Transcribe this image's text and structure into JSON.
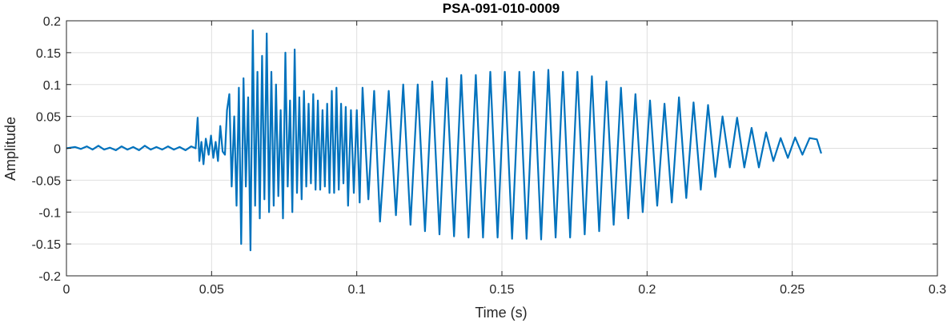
{
  "chart_data": {
    "type": "line",
    "title": "PSA-091-010-0009",
    "xlabel": "Time (s)",
    "ylabel": "Amplitude",
    "xlim": [
      0,
      0.3
    ],
    "ylim": [
      -0.2,
      0.2
    ],
    "grid": true,
    "legend": "none",
    "x_ticks": [
      0,
      0.05,
      0.1,
      0.15,
      0.2,
      0.25,
      0.3
    ],
    "x_tick_labels": [
      "0",
      "0.05",
      "0.1",
      "0.15",
      "0.2",
      "0.25",
      "0.3"
    ],
    "y_ticks": [
      0.2,
      0.15,
      0.1,
      0.05,
      0,
      -0.05,
      -0.1,
      -0.15,
      -0.2
    ],
    "y_tick_labels": [
      "0.2",
      "0.15",
      "0.1",
      "0.05",
      "0",
      "-0.05",
      "-0.1",
      "-0.15",
      "-0.2"
    ],
    "colors": {
      "series": "#0072BD",
      "grid": "#DFDFDF",
      "axes": "#262626"
    },
    "series": [
      {
        "points": [
          [
            0,
            0.0
          ],
          [
            0.003,
            0.002
          ],
          [
            0.005,
            -0.001
          ],
          [
            0.007,
            0.003
          ],
          [
            0.009,
            -0.002
          ],
          [
            0.011,
            0.004
          ],
          [
            0.013,
            -0.002
          ],
          [
            0.015,
            0.001
          ],
          [
            0.017,
            -0.003
          ],
          [
            0.019,
            0.003
          ],
          [
            0.021,
            -0.002
          ],
          [
            0.023,
            0.002
          ],
          [
            0.025,
            -0.003
          ],
          [
            0.027,
            0.004
          ],
          [
            0.029,
            -0.002
          ],
          [
            0.031,
            0.002
          ],
          [
            0.033,
            -0.002
          ],
          [
            0.035,
            0.003
          ],
          [
            0.037,
            -0.002
          ],
          [
            0.039,
            0.002
          ],
          [
            0.041,
            -0.003
          ],
          [
            0.043,
            0.003
          ],
          [
            0.0445,
            0.0
          ],
          [
            0.0452,
            0.048
          ],
          [
            0.0458,
            -0.02
          ],
          [
            0.0465,
            0.01
          ],
          [
            0.0472,
            -0.025
          ],
          [
            0.048,
            0.015
          ],
          [
            0.049,
            -0.01
          ],
          [
            0.0498,
            0.02
          ],
          [
            0.0506,
            -0.015
          ],
          [
            0.0514,
            0.01
          ],
          [
            0.0522,
            -0.02
          ],
          [
            0.053,
            0.035
          ],
          [
            0.0538,
            -0.005
          ],
          [
            0.0546,
            -0.01
          ],
          [
            0.0553,
            0.06
          ],
          [
            0.0561,
            0.085
          ],
          [
            0.0569,
            -0.06
          ],
          [
            0.0578,
            0.05
          ],
          [
            0.0586,
            -0.09
          ],
          [
            0.0594,
            0.095
          ],
          [
            0.0602,
            -0.15
          ],
          [
            0.061,
            0.11
          ],
          [
            0.0618,
            -0.06
          ],
          [
            0.0626,
            0.08
          ],
          [
            0.0634,
            -0.16
          ],
          [
            0.0642,
            0.185
          ],
          [
            0.065,
            -0.09
          ],
          [
            0.0658,
            0.12
          ],
          [
            0.0666,
            -0.11
          ],
          [
            0.0674,
            0.145
          ],
          [
            0.0682,
            -0.08
          ],
          [
            0.069,
            0.18
          ],
          [
            0.0698,
            -0.1
          ],
          [
            0.0706,
            0.12
          ],
          [
            0.0714,
            -0.09
          ],
          [
            0.0722,
            0.1
          ],
          [
            0.073,
            -0.075
          ],
          [
            0.0738,
            0.06
          ],
          [
            0.0746,
            -0.11
          ],
          [
            0.0754,
            0.15
          ],
          [
            0.0762,
            -0.06
          ],
          [
            0.077,
            0.075
          ],
          [
            0.0778,
            -0.1
          ],
          [
            0.0786,
            0.155
          ],
          [
            0.0794,
            -0.07
          ],
          [
            0.0802,
            0.08
          ],
          [
            0.081,
            -0.08
          ],
          [
            0.0818,
            0.09
          ],
          [
            0.0826,
            -0.06
          ],
          [
            0.0834,
            0.07
          ],
          [
            0.0842,
            -0.055
          ],
          [
            0.085,
            0.085
          ],
          [
            0.0858,
            -0.065
          ],
          [
            0.0866,
            0.075
          ],
          [
            0.0874,
            -0.065
          ],
          [
            0.0882,
            0.06
          ],
          [
            0.089,
            -0.06
          ],
          [
            0.0898,
            0.07
          ],
          [
            0.0906,
            -0.07
          ],
          [
            0.0914,
            0.09
          ],
          [
            0.0922,
            -0.07
          ],
          [
            0.093,
            0.095
          ],
          [
            0.0938,
            -0.065
          ],
          [
            0.0946,
            0.07
          ],
          [
            0.0954,
            -0.055
          ],
          [
            0.0962,
            0.065
          ],
          [
            0.097,
            -0.09
          ],
          [
            0.098,
            0.06
          ],
          [
            0.099,
            -0.07
          ],
          [
            0.1,
            0.06
          ],
          [
            0.101,
            -0.085
          ],
          [
            0.102,
            0.095
          ],
          [
            0.104,
            -0.08
          ],
          [
            0.106,
            0.09
          ],
          [
            0.108,
            -0.115
          ],
          [
            0.111,
            0.09
          ],
          [
            0.1135,
            -0.105
          ],
          [
            0.116,
            0.1
          ],
          [
            0.1185,
            -0.12
          ],
          [
            0.121,
            0.1
          ],
          [
            0.1235,
            -0.13
          ],
          [
            0.126,
            0.105
          ],
          [
            0.1285,
            -0.135
          ],
          [
            0.131,
            0.11
          ],
          [
            0.1335,
            -0.138
          ],
          [
            0.136,
            0.115
          ],
          [
            0.1385,
            -0.14
          ],
          [
            0.141,
            0.115
          ],
          [
            0.1435,
            -0.14
          ],
          [
            0.146,
            0.12
          ],
          [
            0.1485,
            -0.14
          ],
          [
            0.151,
            0.12
          ],
          [
            0.1535,
            -0.142
          ],
          [
            0.156,
            0.12
          ],
          [
            0.1585,
            -0.142
          ],
          [
            0.161,
            0.12
          ],
          [
            0.1635,
            -0.143
          ],
          [
            0.166,
            0.123
          ],
          [
            0.1685,
            -0.14
          ],
          [
            0.171,
            0.12
          ],
          [
            0.1735,
            -0.14
          ],
          [
            0.176,
            0.12
          ],
          [
            0.1785,
            -0.135
          ],
          [
            0.181,
            0.113
          ],
          [
            0.1835,
            -0.13
          ],
          [
            0.186,
            0.105
          ],
          [
            0.1885,
            -0.12
          ],
          [
            0.191,
            0.095
          ],
          [
            0.1935,
            -0.11
          ],
          [
            0.196,
            0.085
          ],
          [
            0.1985,
            -0.1
          ],
          [
            0.201,
            0.075
          ],
          [
            0.2035,
            -0.09
          ],
          [
            0.206,
            0.07
          ],
          [
            0.2085,
            -0.085
          ],
          [
            0.211,
            0.08
          ],
          [
            0.2135,
            -0.078
          ],
          [
            0.216,
            0.072
          ],
          [
            0.2185,
            -0.065
          ],
          [
            0.221,
            0.068
          ],
          [
            0.2235,
            -0.045
          ],
          [
            0.226,
            0.05
          ],
          [
            0.2285,
            -0.03
          ],
          [
            0.231,
            0.048
          ],
          [
            0.2335,
            -0.03
          ],
          [
            0.236,
            0.032
          ],
          [
            0.2385,
            -0.03
          ],
          [
            0.241,
            0.025
          ],
          [
            0.2435,
            -0.02
          ],
          [
            0.246,
            0.016
          ],
          [
            0.2485,
            -0.015
          ],
          [
            0.251,
            0.017
          ],
          [
            0.2535,
            -0.01
          ],
          [
            0.256,
            0.016
          ],
          [
            0.2585,
            0.014
          ],
          [
            0.26,
            -0.008
          ]
        ]
      }
    ]
  }
}
